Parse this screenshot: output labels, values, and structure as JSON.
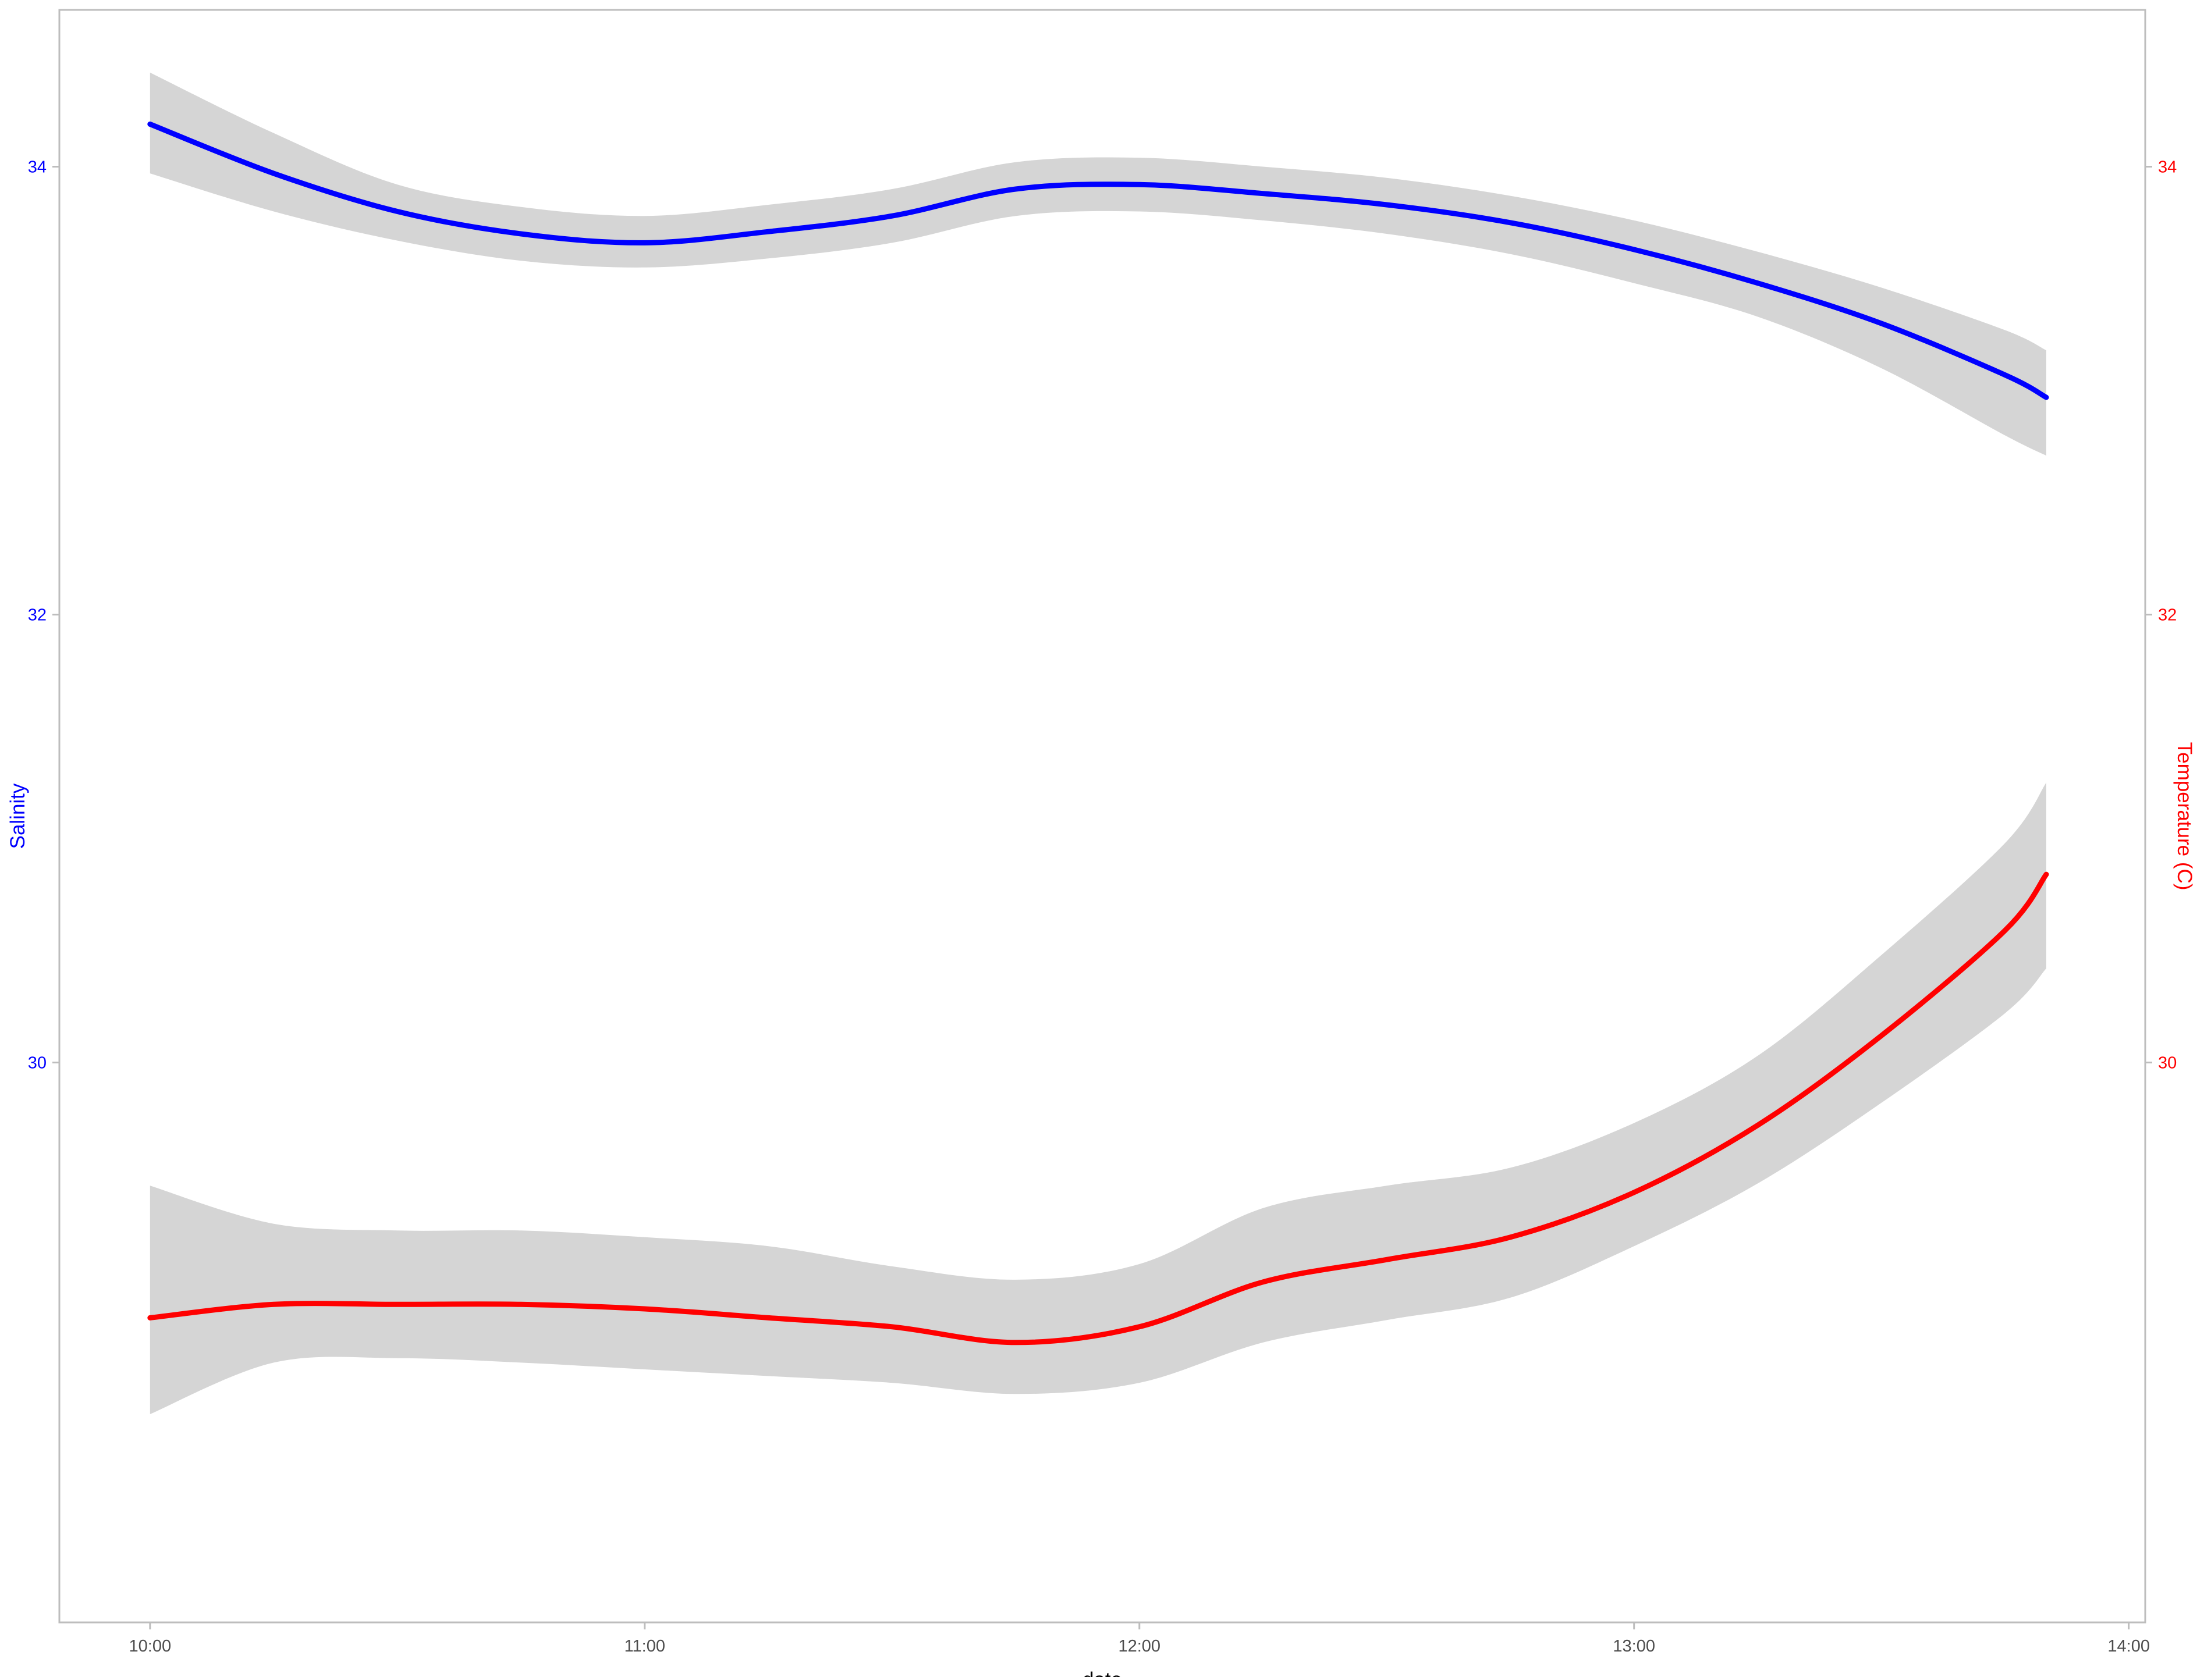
{
  "chart_data": {
    "type": "line",
    "title": "",
    "xlabel": "date",
    "ylabel_left": "Salinity",
    "ylabel_right": "Temperature (C)",
    "x_ticks": [
      "10:00",
      "11:00",
      "12:00",
      "13:00",
      "14:00"
    ],
    "xlim": [
      "09:49",
      "14:02"
    ],
    "ylim": [
      27.5,
      34.7
    ],
    "y_ticks_left": [
      "30",
      "32",
      "34"
    ],
    "y_ticks_right": [
      "30",
      "32",
      "34"
    ],
    "grid": false,
    "series": [
      {
        "axis": "left",
        "color": "#0000ff",
        "ribbon_color": "#d5d5d5",
        "x": [
          "10:00",
          "10:15",
          "10:30",
          "10:45",
          "11:00",
          "11:15",
          "11:30",
          "11:45",
          "12:00",
          "12:15",
          "12:30",
          "12:45",
          "13:00",
          "13:15",
          "13:30",
          "13:45",
          "13:50"
        ],
        "y": [
          34.19,
          33.97,
          33.8,
          33.7,
          33.66,
          33.71,
          33.78,
          33.9,
          33.92,
          33.88,
          33.83,
          33.75,
          33.63,
          33.48,
          33.3,
          33.07,
          32.97
        ],
        "lower": [
          33.97,
          33.8,
          33.67,
          33.58,
          33.55,
          33.59,
          33.66,
          33.78,
          33.8,
          33.76,
          33.7,
          33.61,
          33.48,
          33.33,
          33.1,
          32.8,
          32.71
        ],
        "upper": [
          34.42,
          34.15,
          33.92,
          33.82,
          33.78,
          33.83,
          33.9,
          34.02,
          34.04,
          34.0,
          33.95,
          33.87,
          33.76,
          33.62,
          33.46,
          33.27,
          33.18
        ]
      },
      {
        "axis": "right",
        "color": "#ff0000",
        "ribbon_color": "#d5d5d5",
        "x": [
          "10:00",
          "10:15",
          "10:30",
          "10:45",
          "11:00",
          "11:15",
          "11:30",
          "11:45",
          "12:00",
          "12:15",
          "12:30",
          "12:45",
          "13:00",
          "13:15",
          "13:30",
          "13:45",
          "13:50"
        ],
        "y": [
          28.86,
          28.92,
          28.92,
          28.92,
          28.9,
          28.86,
          28.82,
          28.75,
          28.82,
          29.02,
          29.12,
          29.22,
          29.42,
          29.72,
          30.12,
          30.59,
          30.84
        ],
        "lower": [
          28.43,
          28.66,
          28.68,
          28.66,
          28.63,
          28.6,
          28.57,
          28.52,
          28.57,
          28.75,
          28.85,
          28.95,
          29.18,
          29.46,
          29.82,
          30.22,
          30.42
        ],
        "upper": [
          29.45,
          29.28,
          29.25,
          29.25,
          29.22,
          29.18,
          29.09,
          29.03,
          29.1,
          29.35,
          29.45,
          29.53,
          29.73,
          30.03,
          30.48,
          30.98,
          31.25
        ]
      }
    ]
  }
}
